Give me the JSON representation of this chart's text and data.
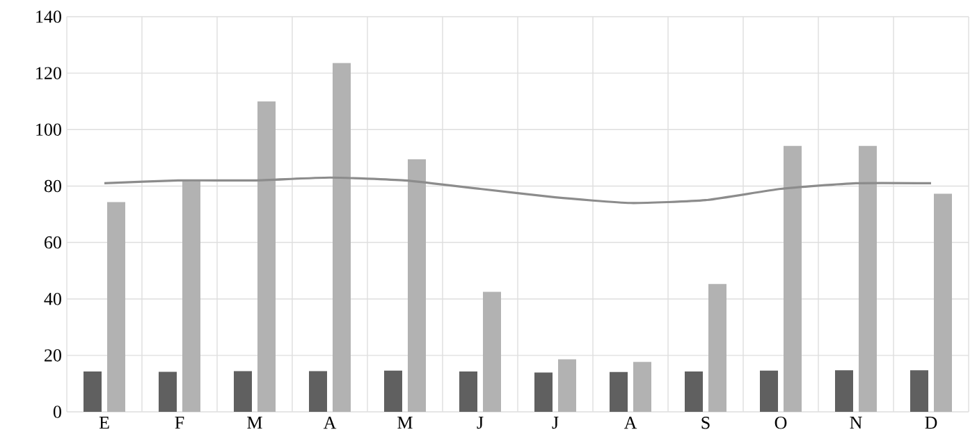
{
  "chart_data": {
    "type": "bar",
    "categories": [
      "E",
      "F",
      "M",
      "A",
      "M",
      "J",
      "J",
      "A",
      "S",
      "O",
      "N",
      "D"
    ],
    "series": [
      {
        "color": "#606060",
        "values": [
          14.3,
          14.2,
          14.4,
          14.4,
          14.6,
          14.3,
          13.9,
          14.1,
          14.3,
          14.6,
          14.7,
          14.7
        ]
      },
      {
        "color": "#b2b2b2",
        "values": [
          74.3,
          82,
          110,
          123.6,
          89.5,
          42.5,
          18.6,
          17.7,
          45.3,
          94.2,
          94.2,
          77.3
        ]
      },
      {
        "type": "line",
        "color": "#8c8c8c",
        "line_style": "solid",
        "marker": "none",
        "values": [
          81,
          82,
          82,
          83,
          82,
          79,
          76,
          74,
          75,
          79,
          81,
          81
        ]
      }
    ],
    "ylim": [
      0,
      140
    ],
    "yticks": [
      0,
      20,
      40,
      60,
      80,
      100,
      120,
      140
    ],
    "grid": true,
    "legend": false
  }
}
